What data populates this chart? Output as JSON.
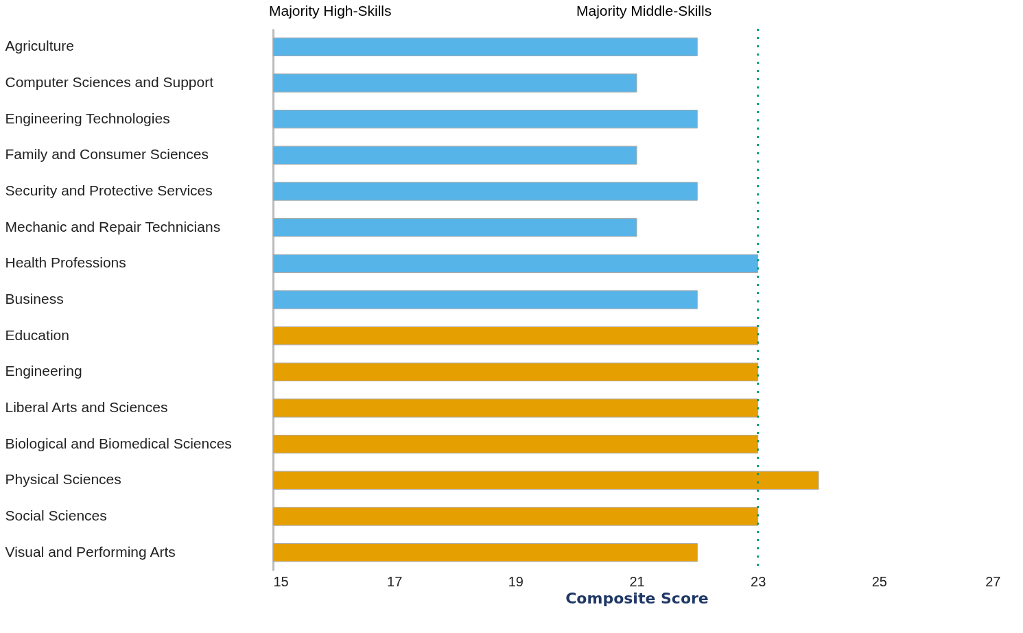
{
  "chart_data": {
    "type": "bar",
    "orientation": "horizontal",
    "xlabel": "Composite Score",
    "categories": [
      "Agriculture",
      "Computer Sciences and Support",
      "Engineering Technologies",
      "Family and Consumer Sciences",
      "Security and Protective Services",
      "Mechanic and Repair Technicians",
      "Health Professions",
      "Business",
      "Education",
      "Engineering",
      "Liberal Arts and Sciences",
      "Biological and Biomedical Sciences",
      "Physical Sciences",
      "Social Sciences",
      "Visual and Performing Arts"
    ],
    "values": [
      22,
      21,
      22,
      21,
      22,
      21,
      23,
      22,
      23,
      23,
      23,
      23,
      24,
      23,
      22
    ],
    "colors": [
      "#56b4e9",
      "#56b4e9",
      "#56b4e9",
      "#56b4e9",
      "#56b4e9",
      "#56b4e9",
      "#56b4e9",
      "#56b4e9",
      "#e69f00",
      "#e69f00",
      "#e69f00",
      "#e69f00",
      "#e69f00",
      "#e69f00",
      "#e69f00"
    ],
    "xlim": [
      15,
      27
    ],
    "xticks": [
      15,
      17,
      19,
      21,
      23,
      25,
      27
    ],
    "ref_lines": [
      {
        "axis": "x",
        "value": 23,
        "color": "#009e73",
        "line_style": "dotted"
      }
    ],
    "annotations": [
      "Majority High-Skills",
      "Majority Middle-Skills"
    ]
  }
}
